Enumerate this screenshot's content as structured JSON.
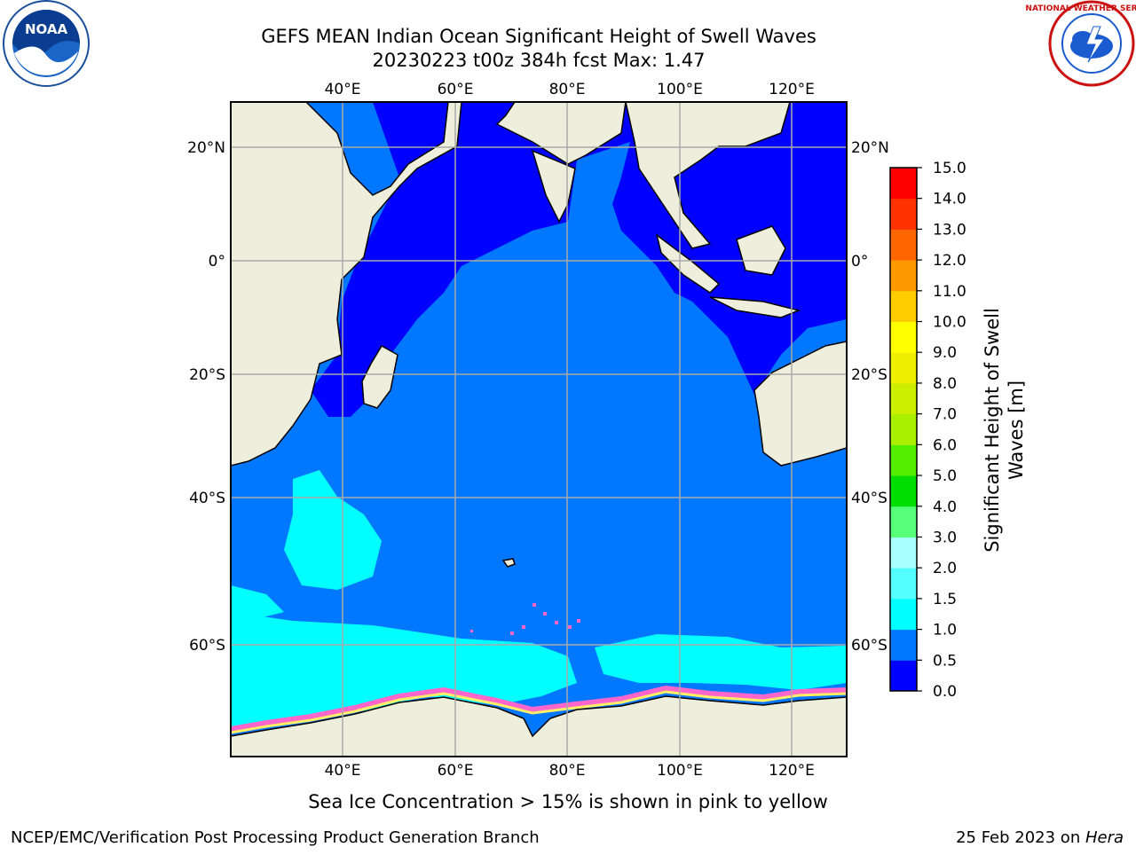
{
  "header": {
    "title_line1": "GEFS MEAN Indian Ocean Significant Height of Swell Waves",
    "title_line2": "20230223 t00z 384h fcst   Max: 1.47"
  },
  "logos": {
    "noaa": {
      "text": "NOAA",
      "ring_text": "NATIONAL OCEANIC AND ATMOSPHERIC ADMINISTRATION · U.S. DEPARTMENT OF COMMERCE"
    },
    "nws": {
      "ring_text": "NATIONAL WEATHER SERVICE"
    }
  },
  "map": {
    "lon_ticks_top": [
      "40°E",
      "60°E",
      "80°E",
      "100°E",
      "120°E"
    ],
    "lon_ticks_bottom": [
      "40°E",
      "60°E",
      "80°E",
      "100°E",
      "120°E"
    ],
    "lat_ticks_left": [
      "20°N",
      "0°",
      "20°S",
      "40°S",
      "60°S"
    ],
    "lat_ticks_right": [
      "20°N",
      "0°",
      "20°S",
      "40°S",
      "60°S"
    ],
    "colors": {
      "land": "#eeeedd",
      "ice_free_ocean_0_0_5": "#0000ff",
      "swell_0_5_1_0": "#0077ff",
      "swell_1_0_1_5": "#00ffff",
      "sea_ice_pink": "#ff66cc",
      "sea_ice_yellow": "#ffee66"
    }
  },
  "colorbar": {
    "label_line1": "Significant Height of Swell",
    "label_line2": "Waves [m]",
    "ticks": [
      "0.0",
      "0.5",
      "1.0",
      "1.5",
      "2.0",
      "3.0",
      "4.0",
      "5.0",
      "6.0",
      "7.0",
      "8.0",
      "9.0",
      "10.0",
      "11.0",
      "12.0",
      "13.0",
      "14.0",
      "15.0"
    ],
    "bin_colors": [
      "#0000ff",
      "#0077ff",
      "#00ffff",
      "#55ffff",
      "#aaffff",
      "#55ff77",
      "#00dd00",
      "#55ee00",
      "#aaee00",
      "#ccee00",
      "#eeee00",
      "#ffff00",
      "#ffcc00",
      "#ff9900",
      "#ff6600",
      "#ff3300",
      "#ff0000"
    ]
  },
  "footer": {
    "note": "Sea Ice Concentration > 15% is shown in pink to yellow",
    "credit_left": "NCEP/EMC/Verification Post Processing Product Generation Branch",
    "credit_right_prefix": "25 Feb 2023 on ",
    "credit_right_host": "Hera"
  }
}
